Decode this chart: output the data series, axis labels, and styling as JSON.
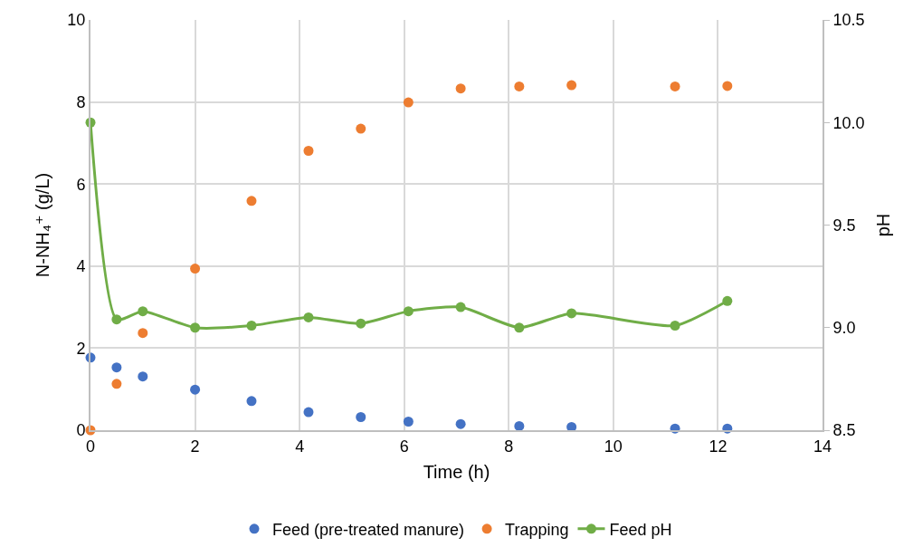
{
  "chart_data": {
    "type": "scatter",
    "xlabel": "Time (h)",
    "ylabel": "N-NH₄⁺ (g/L)",
    "y2label": "pH",
    "x": [
      0,
      0.5,
      1,
      2,
      3.08,
      4.17,
      5.17,
      6.08,
      7.08,
      8.2,
      9.2,
      11.18,
      12.18
    ],
    "series": [
      {
        "name": "Feed (pre-treated manure)",
        "color": "#4472c4",
        "values": [
          1.77,
          1.53,
          1.31,
          0.99,
          0.71,
          0.44,
          0.32,
          0.21,
          0.15,
          0.1,
          0.08,
          0.04,
          0.04
        ]
      },
      {
        "name": "Trapping",
        "color": "#ed7d31",
        "values": [
          0,
          1.13,
          2.37,
          3.94,
          5.59,
          6.81,
          7.35,
          7.99,
          8.33,
          8.38,
          8.41,
          8.38,
          8.39
        ]
      },
      {
        "name": "Feed pH",
        "type": "line",
        "axis": "y2",
        "color": "#70ad47",
        "values": [
          10.0,
          9.04,
          9.08,
          9.0,
          9.01,
          9.05,
          9.02,
          9.08,
          9.1,
          9.0,
          9.07,
          9.01,
          9.13
        ]
      }
    ],
    "xlim": [
      0,
      14
    ],
    "xticks": [
      0,
      2,
      4,
      6,
      8,
      10,
      12,
      14
    ],
    "ylim": [
      0,
      10
    ],
    "yticks": [
      0,
      2,
      4,
      6,
      8,
      10
    ],
    "y2lim": [
      8.5,
      10.5
    ],
    "y2ticks": [
      {
        "value": 8.5,
        "label": "8.5"
      },
      {
        "value": 9,
        "label": "9.0"
      },
      {
        "value": 9.5,
        "label": "9.5"
      },
      {
        "value": 10,
        "label": "10.0"
      },
      {
        "value": 10.5,
        "label": "10.5"
      }
    ],
    "grid": true,
    "legend": "bottom",
    "marker": "circle"
  }
}
